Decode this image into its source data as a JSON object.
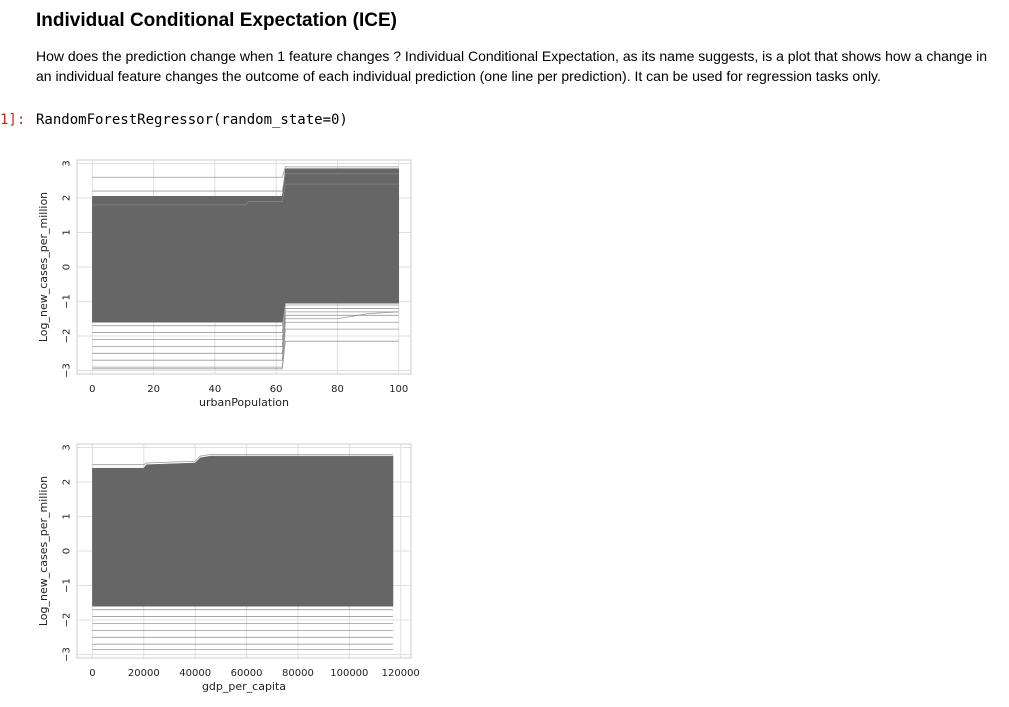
{
  "notebook": {
    "title": "Individual Conditional Expectation (ICE)",
    "description": "How does the prediction change when 1 feature changes ? Individual Conditional Expectation, as its name suggests, is a plot that shows how a change in an individual feature changes the outcome of each individual prediction (one line per prediction). It can be used for regression tasks only.",
    "prompt": "1]:",
    "output": "RandomForestRegressor(random_state=0)"
  },
  "colors": {
    "band": "#666666",
    "line": "#888888",
    "grid": "#e0e0e0",
    "frame": "#cccccc",
    "prompt": "#c62828"
  },
  "chart_data": [
    {
      "type": "line",
      "xlabel": "urbanPopulation",
      "ylabel": "Log_new_cases_per_million",
      "xlim": [
        -5,
        104
      ],
      "ylim": [
        -3.1,
        3.1
      ],
      "xticks": [
        0,
        20,
        40,
        60,
        80,
        100
      ],
      "yticks": [
        -3,
        -2,
        -1,
        0,
        1,
        2,
        3
      ],
      "grid": true,
      "band": {
        "x": [
          0,
          62,
          63,
          100
        ],
        "upper": [
          2.05,
          2.05,
          2.85,
          2.85
        ],
        "lower": [
          -1.6,
          -1.6,
          -1.05,
          -1.05
        ]
      },
      "lines": [
        {
          "x": [
            0,
            62,
            63,
            100
          ],
          "y": [
            2.2,
            2.2,
            2.7,
            2.7
          ]
        },
        {
          "x": [
            0,
            50,
            51,
            62,
            63,
            100
          ],
          "y": [
            1.8,
            1.8,
            1.9,
            1.9,
            2.4,
            2.4
          ]
        },
        {
          "x": [
            0,
            62,
            63,
            100
          ],
          "y": [
            2.6,
            2.6,
            2.9,
            2.9
          ]
        },
        {
          "x": [
            0,
            62,
            63,
            100
          ],
          "y": [
            -1.7,
            -1.7,
            -1.1,
            -1.1
          ]
        },
        {
          "x": [
            0,
            62,
            63,
            100
          ],
          "y": [
            -1.9,
            -1.9,
            -1.2,
            -1.2
          ]
        },
        {
          "x": [
            0,
            62,
            63,
            100
          ],
          "y": [
            -2.1,
            -2.1,
            -1.3,
            -1.3
          ]
        },
        {
          "x": [
            0,
            62,
            63,
            100
          ],
          "y": [
            -2.3,
            -2.3,
            -1.4,
            -1.4
          ]
        },
        {
          "x": [
            0,
            62,
            63,
            80,
            90,
            100
          ],
          "y": [
            -2.5,
            -2.5,
            -1.5,
            -1.5,
            -1.35,
            -1.3
          ]
        },
        {
          "x": [
            0,
            62,
            63,
            100
          ],
          "y": [
            -2.7,
            -2.7,
            -1.6,
            -1.6
          ]
        },
        {
          "x": [
            0,
            62,
            63,
            100
          ],
          "y": [
            -2.9,
            -2.9,
            -1.8,
            -1.8
          ]
        },
        {
          "x": [
            0,
            62,
            63,
            100
          ],
          "y": [
            -2.95,
            -2.95,
            -2.15,
            -2.15
          ]
        }
      ]
    },
    {
      "type": "line",
      "xlabel": "gdp_per_capita",
      "ylabel": "Log_new_cases_per_million",
      "xlim": [
        -6000,
        124000
      ],
      "ylim": [
        -3.1,
        3.1
      ],
      "xticks": [
        0,
        20000,
        40000,
        60000,
        80000,
        100000,
        120000
      ],
      "yticks": [
        -3,
        -2,
        -1,
        0,
        1,
        2,
        3
      ],
      "grid": true,
      "band": {
        "x": [
          0,
          20000,
          21000,
          40000,
          42000,
          46000,
          117000
        ],
        "upper": [
          2.4,
          2.4,
          2.5,
          2.55,
          2.7,
          2.75,
          2.75
        ],
        "lower": [
          -1.6,
          -1.6,
          -1.6,
          -1.6,
          -1.6,
          -1.6,
          -1.6
        ]
      },
      "lines": [
        {
          "x": [
            0,
            20000,
            21000,
            40000,
            42000,
            46000,
            117000
          ],
          "y": [
            2.5,
            2.5,
            2.55,
            2.6,
            2.75,
            2.8,
            2.8
          ]
        },
        {
          "x": [
            0,
            117000
          ],
          "y": [
            -1.7,
            -1.7
          ]
        },
        {
          "x": [
            0,
            117000
          ],
          "y": [
            -1.9,
            -1.9
          ]
        },
        {
          "x": [
            0,
            117000
          ],
          "y": [
            -2.1,
            -2.1
          ]
        },
        {
          "x": [
            0,
            117000
          ],
          "y": [
            -2.3,
            -2.3
          ]
        },
        {
          "x": [
            0,
            117000
          ],
          "y": [
            -2.5,
            -2.5
          ]
        },
        {
          "x": [
            0,
            117000
          ],
          "y": [
            -2.7,
            -2.7
          ]
        },
        {
          "x": [
            0,
            117000
          ],
          "y": [
            -2.85,
            -2.85
          ]
        }
      ]
    }
  ]
}
